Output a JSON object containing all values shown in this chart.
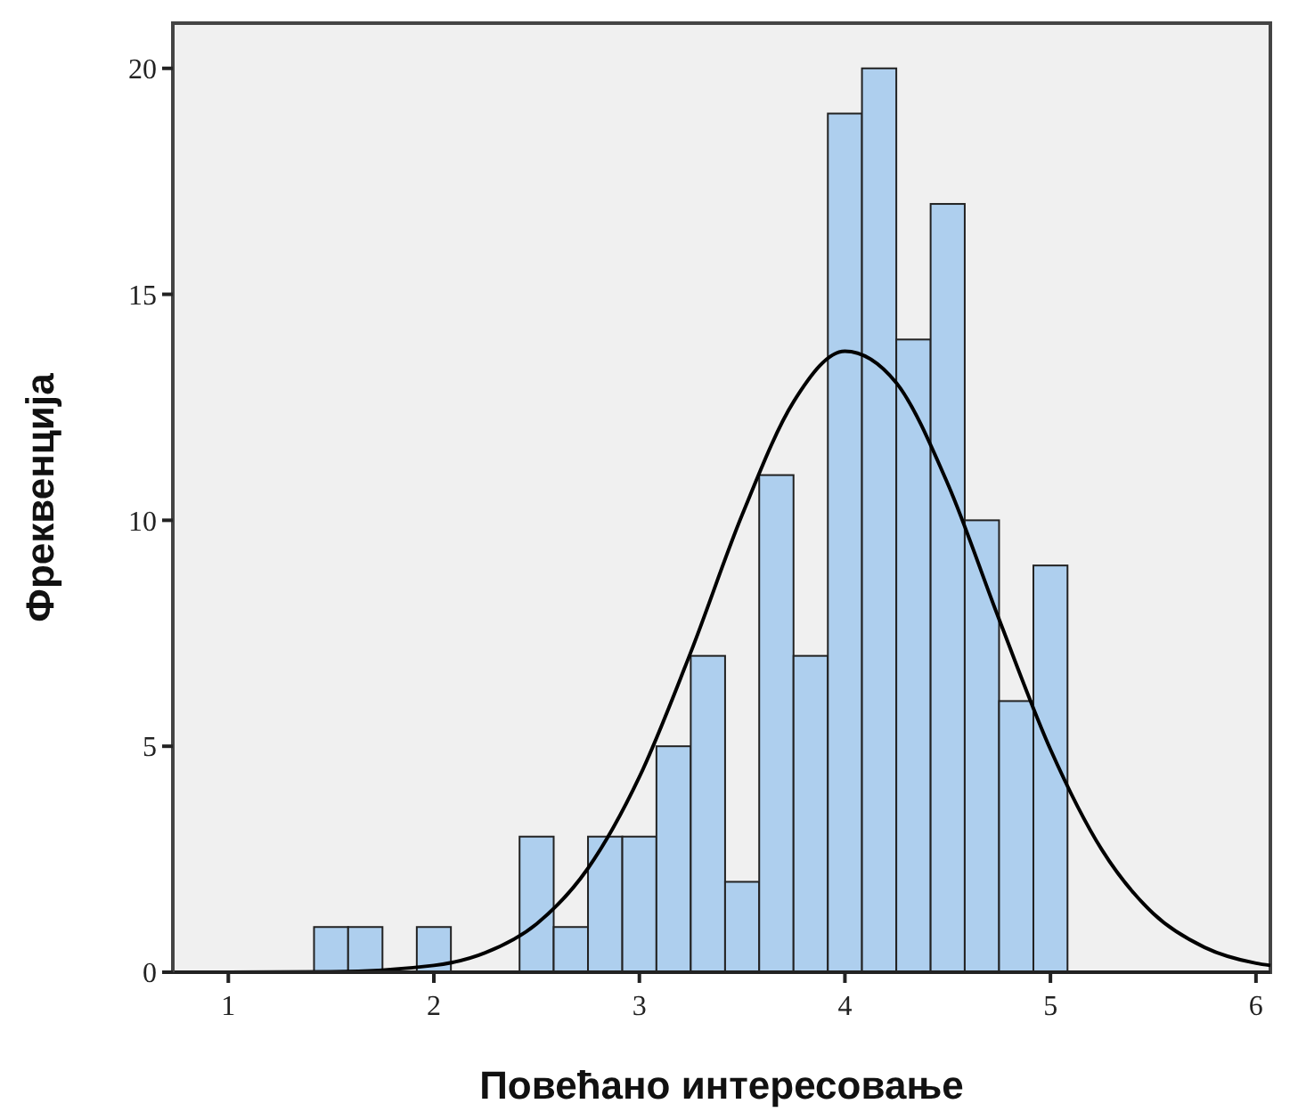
{
  "chart_data": {
    "type": "histogram",
    "xlabel": "Повећано интересовање",
    "ylabel": "Фреквенција",
    "xlim": [
      0.73,
      6.07
    ],
    "ylim": [
      0,
      21
    ],
    "xticks": [
      1,
      2,
      3,
      4,
      5,
      6
    ],
    "yticks": [
      0,
      5,
      10,
      15,
      20
    ],
    "grid": false,
    "marker": "none",
    "series": [
      {
        "color": "#aecfee",
        "bins": [
          1.417,
          1.583,
          1.75,
          1.917,
          2.083,
          2.25,
          2.417,
          2.583,
          2.75,
          2.917,
          3.083,
          3.25,
          3.417,
          3.583,
          3.75,
          3.917,
          4.083,
          4.25,
          4.417,
          4.583,
          4.75,
          4.917,
          5.083
        ],
        "values": [
          1,
          1,
          0,
          1,
          0,
          0,
          3,
          1,
          3,
          3,
          5,
          7,
          2,
          11,
          7,
          19,
          20,
          14,
          17,
          10,
          6,
          9
        ]
      },
      {
        "type": "line",
        "color": "#000000",
        "line_style": "solid",
        "x": [
          0.75,
          1.0,
          1.5,
          2.0,
          2.25,
          2.5,
          2.75,
          3.0,
          3.25,
          3.5,
          3.75,
          4.0,
          4.25,
          4.5,
          4.75,
          5.0,
          5.25,
          5.5,
          5.75,
          6.0,
          6.07
        ],
        "values": [
          0,
          0,
          0.01,
          0.15,
          0.43,
          1.07,
          2.3,
          4.32,
          7.08,
          10.12,
          12.62,
          13.74,
          13.04,
          10.81,
          7.81,
          4.93,
          2.71,
          1.3,
          0.55,
          0.2,
          0.15
        ]
      }
    ]
  }
}
